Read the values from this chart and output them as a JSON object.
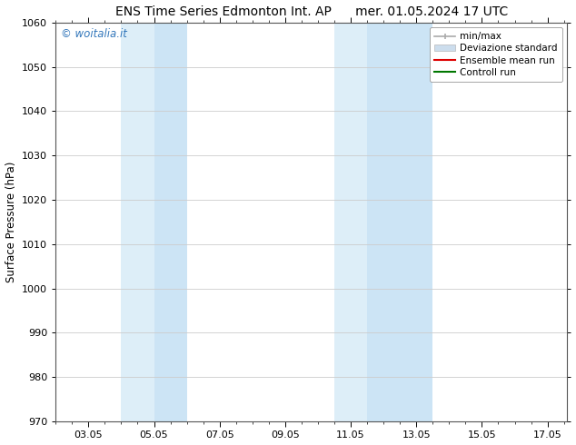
{
  "title": "ENS Time Series Edmonton Int. AP      mer. 01.05.2024 17 UTC",
  "ylabel": "Surface Pressure (hPa)",
  "ylim": [
    970,
    1060
  ],
  "yticks": [
    970,
    980,
    990,
    1000,
    1010,
    1020,
    1030,
    1040,
    1050,
    1060
  ],
  "xlim": [
    2.0,
    17.6
  ],
  "xtick_labels": [
    "03.05",
    "05.05",
    "07.05",
    "09.05",
    "11.05",
    "13.05",
    "15.05",
    "17.05"
  ],
  "xtick_positions": [
    3,
    5,
    7,
    9,
    11,
    13,
    15,
    17
  ],
  "shaded_bands": [
    {
      "x_start": 4.0,
      "x_end": 5.0,
      "color": "#ddeef8"
    },
    {
      "x_start": 5.0,
      "x_end": 6.0,
      "color": "#cce4f5"
    },
    {
      "x_start": 10.5,
      "x_end": 11.5,
      "color": "#ddeef8"
    },
    {
      "x_start": 11.5,
      "x_end": 13.5,
      "color": "#cce4f5"
    }
  ],
  "watermark_text": "© woitalia.it",
  "watermark_color": "#3377bb",
  "legend_items": [
    {
      "label": "min/max",
      "color": "#aaaaaa",
      "lw": 1.2,
      "style": "line_caps"
    },
    {
      "label": "Deviazione standard",
      "color": "#ccdded",
      "lw": 7,
      "style": "thick"
    },
    {
      "label": "Ensemble mean run",
      "color": "#dd0000",
      "lw": 1.5,
      "style": "line"
    },
    {
      "label": "Controll run",
      "color": "#007700",
      "lw": 1.5,
      "style": "line"
    }
  ],
  "background_color": "#ffffff",
  "title_fontsize": 10,
  "axis_label_fontsize": 8.5,
  "tick_fontsize": 8,
  "legend_fontsize": 7.5
}
